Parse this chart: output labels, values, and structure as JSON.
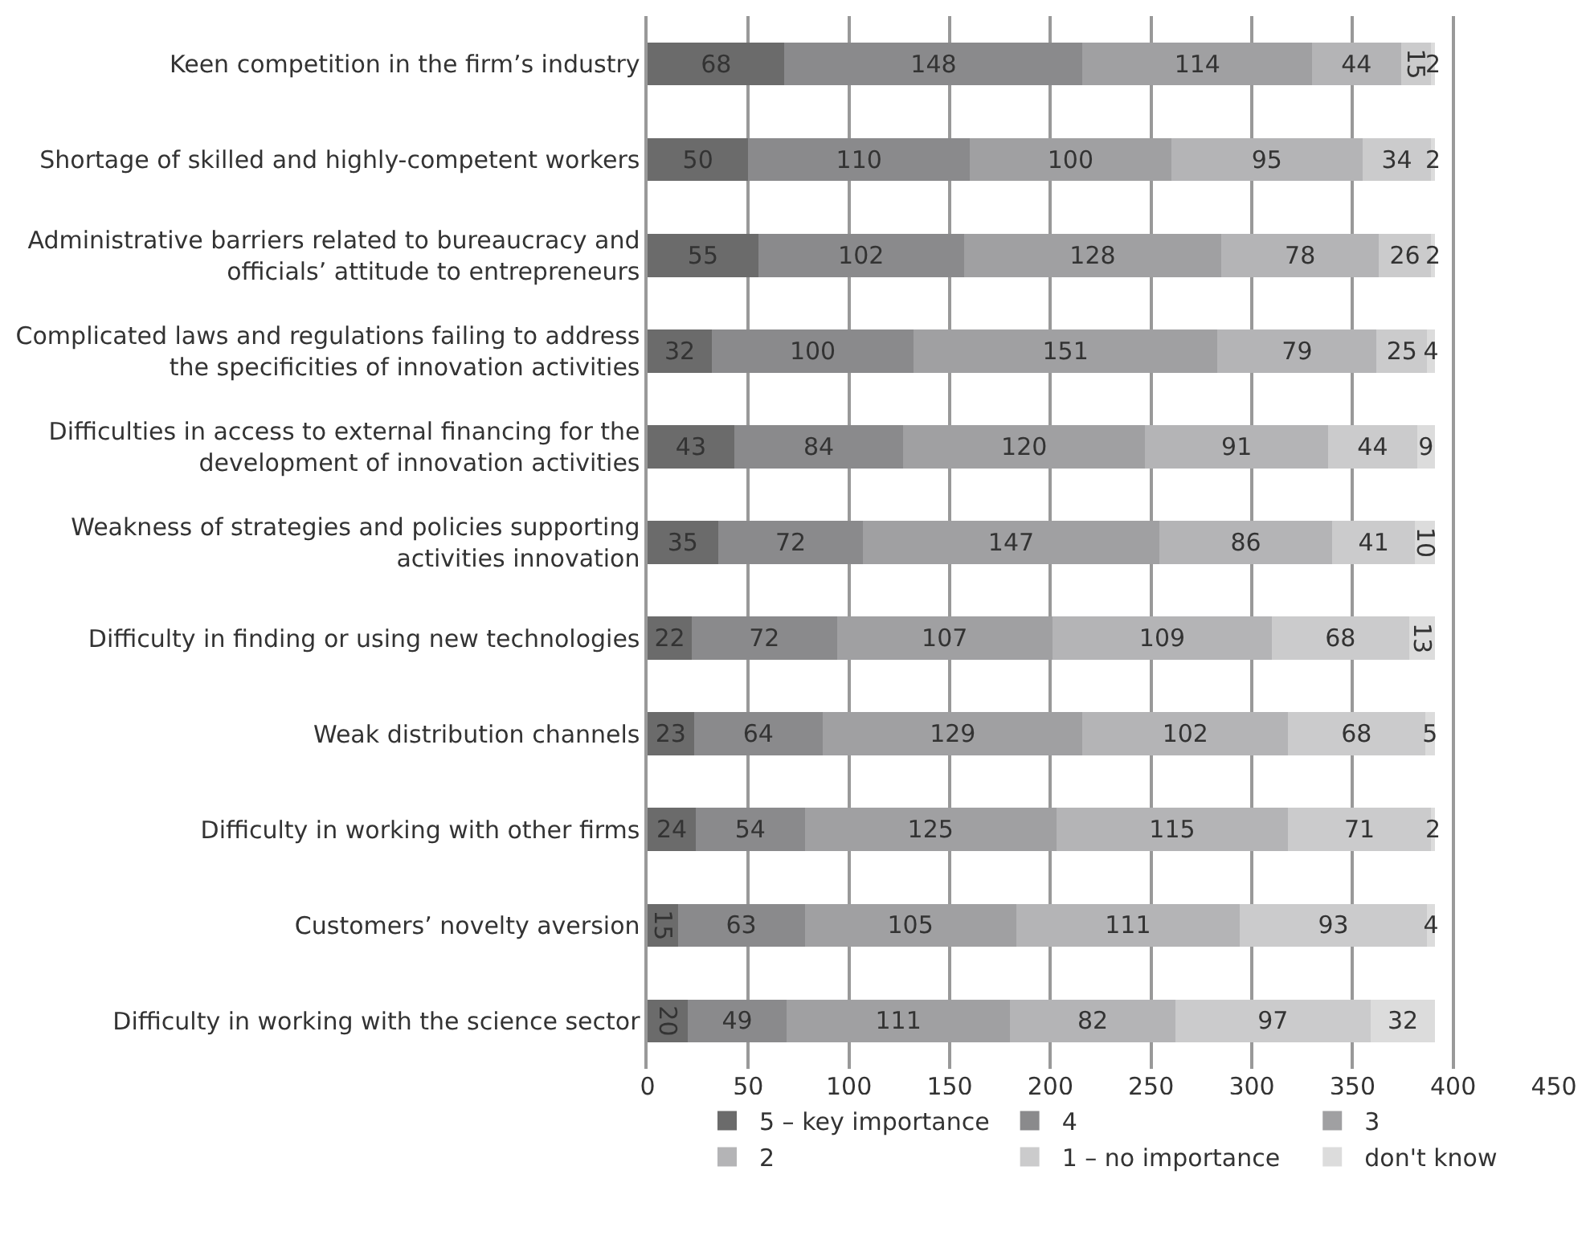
{
  "chart_data": {
    "type": "bar",
    "orientation": "horizontal",
    "stacked": true,
    "data_labels": true,
    "grid": "x",
    "legend": "bottom",
    "categories": [
      "Keen competition in the firm’s industry",
      "Shortage of skilled and highly-competent workers",
      "Administrative barriers related to bureaucracy and officials’ attitude to entrepreneurs",
      "Complicated laws and regulations failing to address the specificities of innovation activities",
      "Difficulties in access to external financing for the development of innovation activities",
      "Weakness of strategies and policies supporting activities innovation",
      "Difficulty in finding or using new technologies",
      "Weak distribution channels",
      "Difficulty in working with other firms",
      "Customers’ novelty aversion",
      "Difficulty in working with the science sector"
    ],
    "series": [
      {
        "name": "5 – key importance",
        "color": "#6b6b6b",
        "values": [
          68,
          50,
          55,
          32,
          43,
          35,
          22,
          23,
          24,
          15,
          20
        ]
      },
      {
        "name": "4",
        "color": "#8a8a8c",
        "values": [
          148,
          110,
          102,
          100,
          84,
          72,
          72,
          64,
          54,
          63,
          49
        ]
      },
      {
        "name": "3",
        "color": "#a0a0a2",
        "values": [
          114,
          100,
          128,
          151,
          120,
          147,
          107,
          129,
          125,
          105,
          111
        ]
      },
      {
        "name": "2",
        "color": "#b4b4b6",
        "values": [
          44,
          95,
          78,
          79,
          91,
          86,
          109,
          102,
          115,
          111,
          82
        ]
      },
      {
        "name": "1 – no importance",
        "color": "#cbcbcc",
        "values": [
          15,
          34,
          26,
          25,
          44,
          41,
          68,
          68,
          71,
          93,
          97
        ]
      },
      {
        "name": "don't know",
        "color": "#dcdcdc",
        "values": [
          2,
          2,
          2,
          4,
          9,
          10,
          13,
          5,
          2,
          4,
          32
        ]
      }
    ],
    "xlim": [
      0,
      450
    ],
    "xticks": [
      0,
      50,
      100,
      150,
      200,
      250,
      300,
      350,
      400,
      450
    ]
  }
}
